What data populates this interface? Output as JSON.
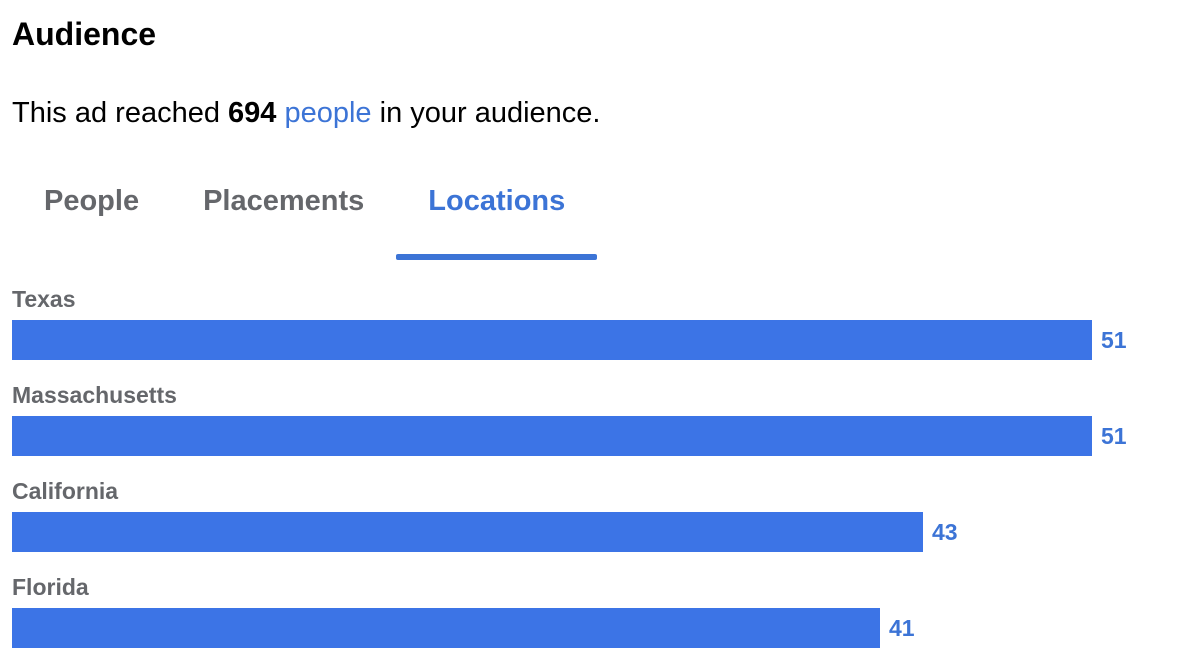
{
  "section": {
    "title": "Audience"
  },
  "summary": {
    "prefix": "This ad reached ",
    "count": "694",
    "link_text": "people",
    "suffix": " in your audience."
  },
  "tabs": [
    {
      "label": "People",
      "active": false
    },
    {
      "label": "Placements",
      "active": false
    },
    {
      "label": "Locations",
      "active": true
    }
  ],
  "colors": {
    "accent": "#3c74d6",
    "bar": "#3c74e6",
    "muted_text": "#65676b"
  },
  "chart_data": {
    "type": "bar",
    "orientation": "horizontal",
    "categories": [
      "Texas",
      "Massachusetts",
      "California",
      "Florida"
    ],
    "values": [
      51,
      51,
      43,
      41
    ],
    "xlim": [
      0,
      51
    ],
    "grid": false
  }
}
